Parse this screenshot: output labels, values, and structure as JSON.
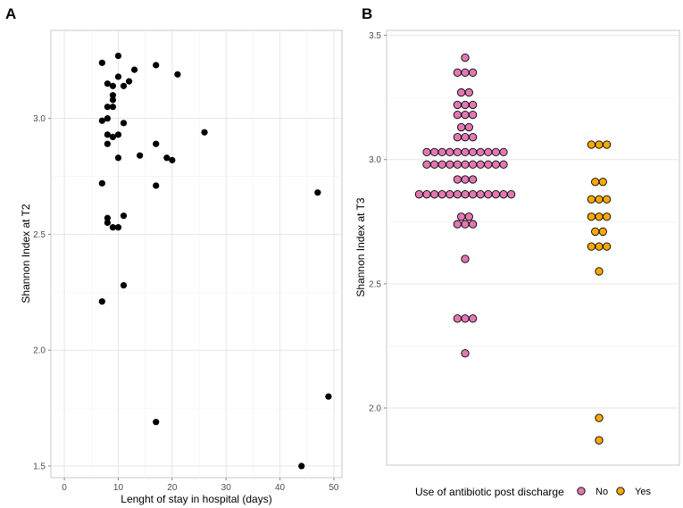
{
  "chart_data": [
    {
      "panel": "A",
      "type": "scatter",
      "xlabel": "Lenght of stay in hospital (days)",
      "ylabel": "Shannon Index at T2",
      "xlim": [
        -2.5,
        51.5
      ],
      "ylim": [
        1.45,
        3.38
      ],
      "xticks": [
        0,
        10,
        20,
        30,
        40,
        50
      ],
      "yticks": [
        1.5,
        2.0,
        2.5,
        3.0
      ],
      "ytick_labels": [
        "1.5",
        "2.0",
        "2.5",
        "3.0"
      ],
      "grid": true,
      "point_color": "#000000",
      "points": [
        [
          7,
          3.24
        ],
        [
          10,
          3.27
        ],
        [
          8,
          3.15
        ],
        [
          9,
          3.14
        ],
        [
          10,
          3.18
        ],
        [
          11,
          3.14
        ],
        [
          12,
          3.16
        ],
        [
          13,
          3.21
        ],
        [
          17,
          3.23
        ],
        [
          21,
          3.19
        ],
        [
          9,
          3.1
        ],
        [
          9,
          3.08
        ],
        [
          8,
          3.05
        ],
        [
          9,
          3.05
        ],
        [
          7,
          2.99
        ],
        [
          8,
          3.0
        ],
        [
          11,
          2.98
        ],
        [
          8,
          2.93
        ],
        [
          9,
          2.92
        ],
        [
          10,
          2.93
        ],
        [
          8,
          2.89
        ],
        [
          17,
          2.89
        ],
        [
          26,
          2.94
        ],
        [
          10,
          2.83
        ],
        [
          14,
          2.84
        ],
        [
          19,
          2.83
        ],
        [
          20,
          2.82
        ],
        [
          7,
          2.72
        ],
        [
          17,
          2.71
        ],
        [
          47,
          2.68
        ],
        [
          11,
          2.58
        ],
        [
          8,
          2.57
        ],
        [
          8,
          2.55
        ],
        [
          9,
          2.53
        ],
        [
          10,
          2.53
        ],
        [
          11,
          2.28
        ],
        [
          7,
          2.21
        ],
        [
          17,
          1.69
        ],
        [
          49,
          1.8
        ],
        [
          44,
          1.5
        ]
      ]
    },
    {
      "panel": "B",
      "type": "scatter",
      "subtype": "dotplot",
      "xlabel": "",
      "ylabel": "Shannon Index at T3",
      "categories": [
        "No",
        "Yes"
      ],
      "ylim": [
        1.77,
        3.52
      ],
      "yticks": [
        2.0,
        2.5,
        3.0,
        3.5
      ],
      "ytick_labels": [
        "2.0",
        "2.5",
        "3.0",
        "3.5"
      ],
      "grid": true,
      "legend": {
        "title": "Use of antibiotic post discharge",
        "position": "bottom",
        "entries": [
          {
            "label": "No",
            "color": "#e377b4"
          },
          {
            "label": "Yes",
            "color": "#f5a80a"
          }
        ]
      },
      "series": [
        {
          "name": "No",
          "color": "#e377b4",
          "bins": [
            {
              "y": 3.41,
              "count": 1
            },
            {
              "y": 3.35,
              "count": 3
            },
            {
              "y": 3.27,
              "count": 2
            },
            {
              "y": 3.22,
              "count": 3
            },
            {
              "y": 3.18,
              "count": 3
            },
            {
              "y": 3.13,
              "count": 2
            },
            {
              "y": 3.09,
              "count": 3
            },
            {
              "y": 3.03,
              "count": 11
            },
            {
              "y": 2.98,
              "count": 11
            },
            {
              "y": 2.92,
              "count": 3
            },
            {
              "y": 2.86,
              "count": 13
            },
            {
              "y": 2.77,
              "count": 2
            },
            {
              "y": 2.74,
              "count": 3
            },
            {
              "y": 2.6,
              "count": 1
            },
            {
              "y": 2.36,
              "count": 3
            },
            {
              "y": 2.22,
              "count": 1
            }
          ]
        },
        {
          "name": "Yes",
          "color": "#f5a80a",
          "bins": [
            {
              "y": 3.06,
              "count": 3
            },
            {
              "y": 2.91,
              "count": 2
            },
            {
              "y": 2.84,
              "count": 3
            },
            {
              "y": 2.77,
              "count": 3
            },
            {
              "y": 2.71,
              "count": 2
            },
            {
              "y": 2.65,
              "count": 3
            },
            {
              "y": 2.55,
              "count": 1
            },
            {
              "y": 1.96,
              "count": 1
            },
            {
              "y": 1.87,
              "count": 1
            }
          ]
        }
      ]
    }
  ]
}
